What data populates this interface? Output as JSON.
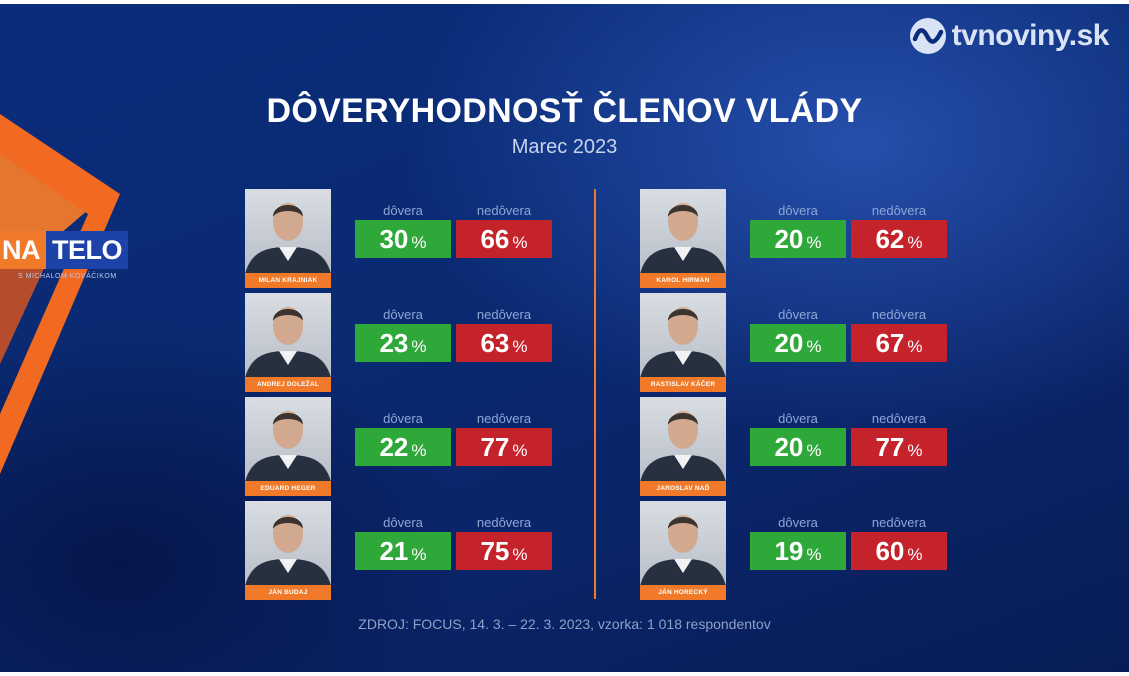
{
  "brand": {
    "site": "tvnoviny.sk",
    "show_na": "NA",
    "show_telo": "TELO",
    "show_sub": "S MICHALOM KOVÁČIKOM"
  },
  "chart_data": {
    "type": "table",
    "title": "DÔVERYHODNOSŤ ČLENOV VLÁDY",
    "subtitle": "Marec 2023",
    "columns": [
      "dôvera",
      "nedôvera"
    ],
    "unit": "%",
    "rows": [
      {
        "name": "MILAN KRAJNIAK",
        "trust": 30,
        "distrust": 66
      },
      {
        "name": "ANDREJ DOLEŽAL",
        "trust": 23,
        "distrust": 63
      },
      {
        "name": "EDUARD HEGER",
        "trust": 22,
        "distrust": 77
      },
      {
        "name": "JÁN BUDAJ",
        "trust": 21,
        "distrust": 75
      },
      {
        "name": "KAROL HIRMAN",
        "trust": 20,
        "distrust": 62
      },
      {
        "name": "RASTISLAV KÁČER",
        "trust": 20,
        "distrust": 67
      },
      {
        "name": "JAROSLAV NAĎ",
        "trust": 20,
        "distrust": 77
      },
      {
        "name": "JÁN HORECKÝ",
        "trust": 19,
        "distrust": 60
      }
    ],
    "source": "ZDROJ: FOCUS, 14. 3. – 22. 3. 2023, vzorka: 1 018 respondentov"
  },
  "colors": {
    "trust": "#2fa83a",
    "distrust": "#c4232b",
    "accent": "#f07a2a",
    "background": "#0a2a72"
  }
}
